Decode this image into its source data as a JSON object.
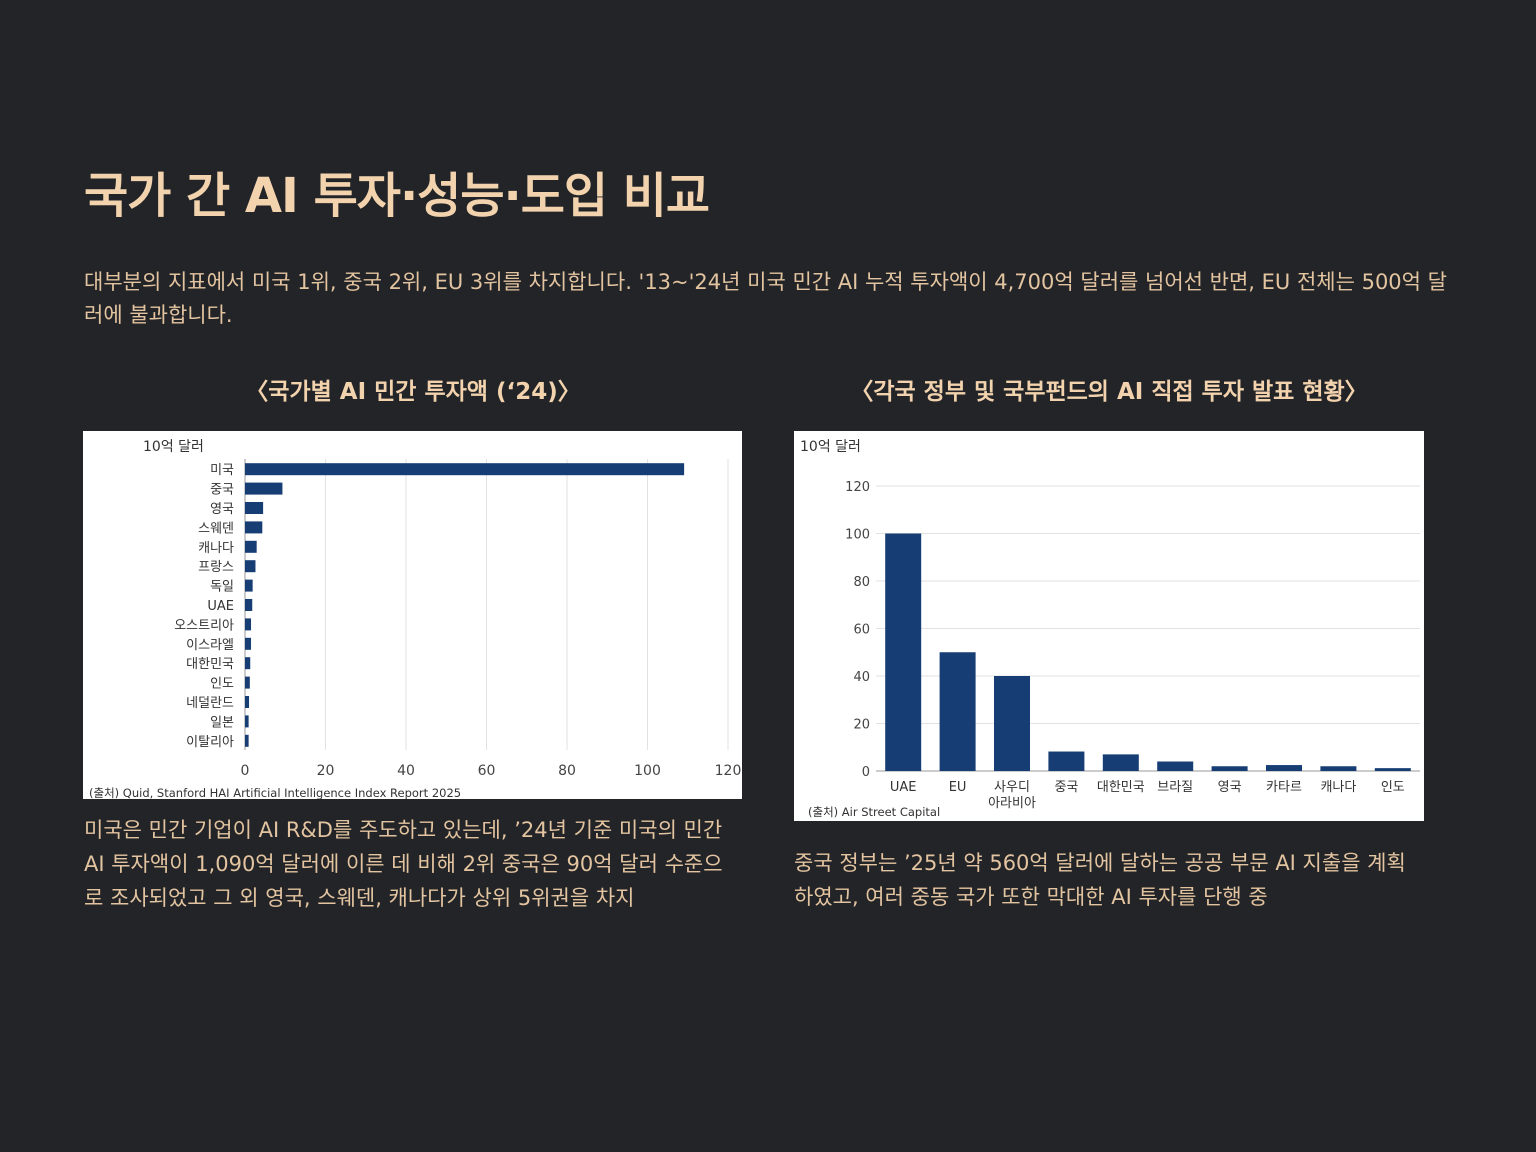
{
  "page": {
    "title": "국가 간 AI 투자·성능·도입 비교",
    "intro": "대부분의 지표에서 미국 1위, 중국 2위, EU 3위를 차지합니다. '13~'24년 미국 민간 AI 누적 투자액이 4,700억 달러를 넘어선 반면, EU 전체는 500억 달러에 불과합니다."
  },
  "left": {
    "heading": "〈국가별 AI 민간 투자액 (‘24)〉",
    "caption": "미국은 민간 기업이 AI R&D를 주도하고 있는데, ’24년 기준 미국의 민간 AI 투자액이 1,090억 달러에 이른 데 비해 2위 중국은 90억 달러 수준으로 조사되었고 그 외 영국, 스웨덴, 캐나다가 상위 5위권을 차지"
  },
  "right": {
    "heading": "〈각국 정부 및 국부펀드의 AI 직접 투자 발표 현황〉",
    "caption": "중국 정부는 ’25년 약 560억 달러에 달하는 공공 부문 AI 지출을 계획하였고, 여러 중동 국가 또한 막대한 AI 투자를 단행 중"
  },
  "chart_data": [
    {
      "type": "bar",
      "orientation": "horizontal",
      "unit_label": "10억 달러",
      "categories": [
        "미국",
        "중국",
        "영국",
        "스웨덴",
        "캐나다",
        "프랑스",
        "독일",
        "UAE",
        "오스트리아",
        "이스라엘",
        "대한민국",
        "인도",
        "네덜란드",
        "일본",
        "이탈리아"
      ],
      "values": [
        109.1,
        9.3,
        4.5,
        4.3,
        2.9,
        2.6,
        1.9,
        1.8,
        1.5,
        1.5,
        1.3,
        1.2,
        1.0,
        0.9,
        0.9
      ],
      "xlim": [
        0,
        120
      ],
      "xticks": [
        "0",
        "20",
        "40",
        "60",
        "80",
        "100",
        "120"
      ],
      "grid": "vertical",
      "source": "(출처) Quid, Stanford HAI Artificial Intelligence Index Report 2025",
      "bar_color": "#173e74"
    },
    {
      "type": "bar",
      "orientation": "vertical",
      "unit_label": "10억 달러",
      "categories": [
        "UAE",
        "EU",
        "사우디\n아라비아",
        "중국",
        "대한민국",
        "브라질",
        "영국",
        "카타르",
        "캐나다",
        "인도"
      ],
      "values": [
        100,
        50,
        40,
        8.2,
        7,
        4,
        2,
        2.5,
        2,
        1.2
      ],
      "ylim": [
        0,
        120
      ],
      "yticks": [
        "0",
        "20",
        "40",
        "60",
        "80",
        "100",
        "120"
      ],
      "grid": "horizontal",
      "source": "(출처) Air Street Capital",
      "bar_color": "#173e74"
    }
  ]
}
